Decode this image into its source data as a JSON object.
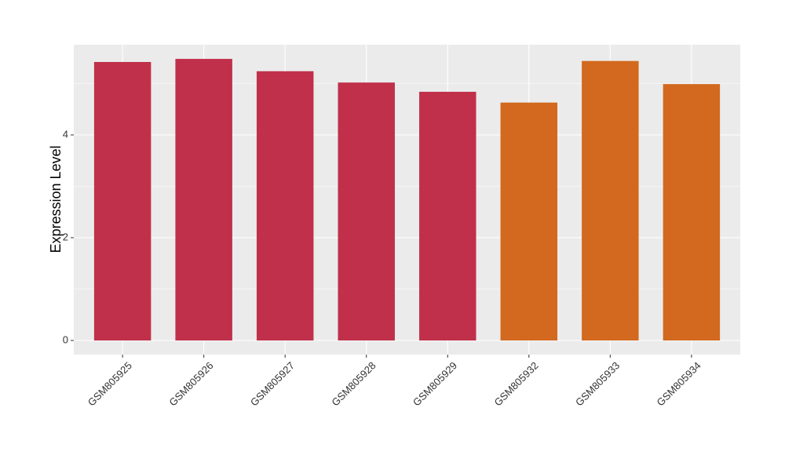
{
  "chart_data": {
    "type": "bar",
    "y_label": "Expression Level",
    "categories": [
      "GSM805925",
      "GSM805926",
      "GSM805927",
      "GSM805928",
      "GSM805929",
      "GSM805932",
      "GSM805933",
      "GSM805934"
    ],
    "values": [
      5.42,
      5.48,
      5.24,
      5.02,
      4.84,
      4.63,
      5.44,
      4.99
    ],
    "colors": [
      "#c0304a",
      "#c0304a",
      "#c0304a",
      "#c0304a",
      "#c0304a",
      "#d2691f",
      "#d2691f",
      "#d2691f"
    ],
    "ylim": [
      -0.275,
      5.756
    ],
    "yticks": [
      0,
      2,
      4
    ],
    "grid": true
  }
}
